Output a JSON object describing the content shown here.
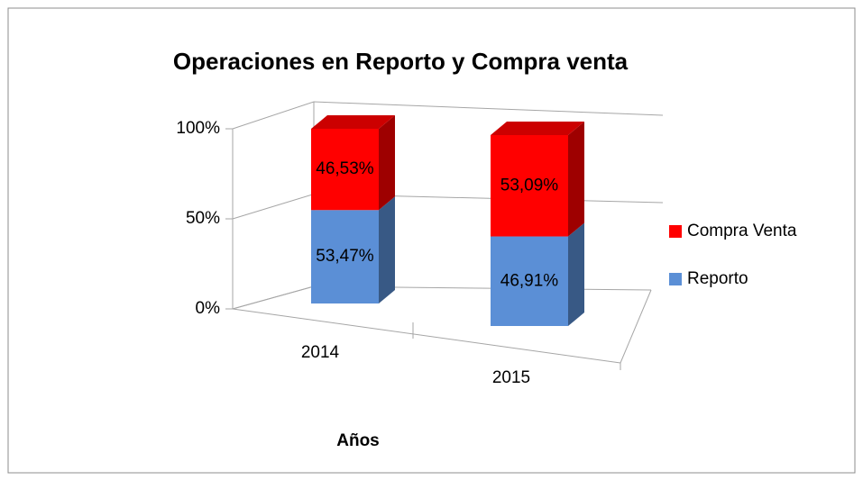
{
  "chart_data": {
    "type": "bar3d_stacked",
    "title": "Operaciones en Reporto y Compra venta",
    "xlabel": "Años",
    "categories": [
      "2014",
      "2015"
    ],
    "series": [
      {
        "name": "Reporto",
        "color": "#5b8fd6",
        "values": [
          53.47,
          46.91
        ],
        "value_labels": [
          "53,47%",
          "46,91%"
        ]
      },
      {
        "name": "Compra Venta",
        "color": "#ff0000",
        "values": [
          46.53,
          53.09
        ],
        "value_labels": [
          "46,53%",
          "53,09%"
        ]
      }
    ],
    "ylim": [
      0,
      100
    ],
    "yticks": [
      {
        "value": 0,
        "label": "0%"
      },
      {
        "value": 50,
        "label": "50%"
      },
      {
        "value": 100,
        "label": "100%"
      }
    ],
    "grid": true,
    "legend": "right"
  }
}
